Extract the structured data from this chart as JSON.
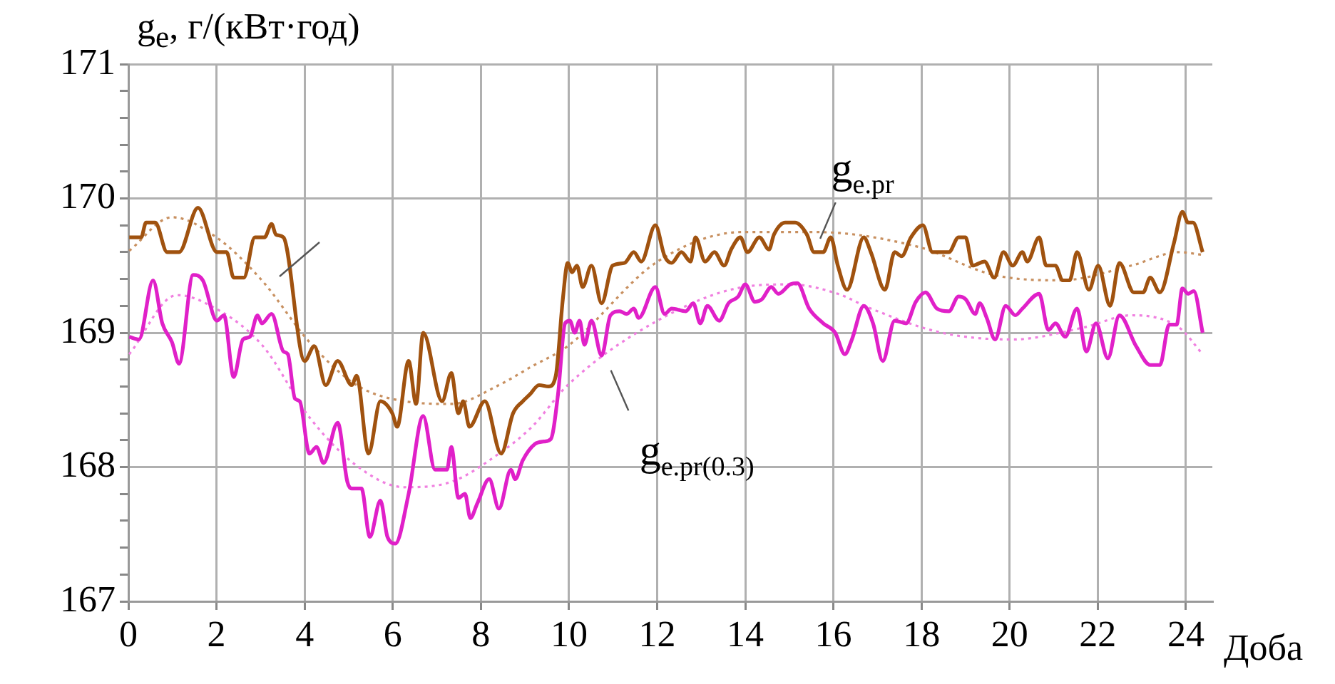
{
  "chart_data": {
    "type": "line",
    "xlabel": "Доба",
    "ylabel": "g$_{e}$, г/(кВт·год)",
    "xlim": [
      0,
      24.6
    ],
    "xticks": [
      0,
      2,
      4,
      6,
      8,
      10,
      12,
      14,
      16,
      18,
      20,
      22,
      24
    ],
    "ylim": [
      167,
      171
    ],
    "yticks": [
      167,
      {
        "value": 167.2,
        "label": null
      },
      {
        "value": 167.4,
        "label": null
      },
      {
        "value": 167.6,
        "label": null
      },
      {
        "value": 167.8,
        "label": null
      },
      168,
      {
        "value": 168.2,
        "label": null
      },
      {
        "value": 168.4,
        "label": null
      },
      {
        "value": 168.6,
        "label": null
      },
      {
        "value": 168.8,
        "label": null
      },
      169,
      {
        "value": 169.2,
        "label": null
      },
      {
        "value": 169.4,
        "label": null
      },
      {
        "value": 169.6,
        "label": null
      },
      {
        "value": 169.8,
        "label": null
      },
      170,
      {
        "value": 170.2,
        "label": null
      },
      {
        "value": 170.4,
        "label": null
      },
      {
        "value": 170.6,
        "label": null
      },
      {
        "value": 170.8,
        "label": null
      },
      171
    ],
    "grid": true,
    "legend": false,
    "marker": "none",
    "series": [
      {
        "name": "g$_{e.pr}$",
        "color": "#a0520f",
        "line_style": "solid",
        "x": [
          0.02,
          0.29,
          0.4,
          0.61,
          0.88,
          1.15,
          1.58,
          2.01,
          2.23,
          2.39,
          2.62,
          2.87,
          3.09,
          3.25,
          3.35,
          3.52,
          4.0,
          4.22,
          4.48,
          4.75,
          5.07,
          5.18,
          5.45,
          5.72,
          5.99,
          6.1,
          6.36,
          6.53,
          6.69,
          7.12,
          7.33,
          7.49,
          7.6,
          7.74,
          8.09,
          8.46,
          8.73,
          8.95,
          9.11,
          9.32,
          9.54,
          9.7,
          9.86,
          9.97,
          10.07,
          10.18,
          10.31,
          10.51,
          10.74,
          10.99,
          11.26,
          11.47,
          11.64,
          11.96,
          12.17,
          12.33,
          12.55,
          12.76,
          12.87,
          13.09,
          13.3,
          13.52,
          13.68,
          13.89,
          14.05,
          14.32,
          14.54,
          14.65,
          14.91,
          15.13,
          15.4,
          15.56,
          15.77,
          15.94,
          16.1,
          16.31,
          16.69,
          16.85,
          17.17,
          17.39,
          17.55,
          17.76,
          18.03,
          18.25,
          18.62,
          18.84,
          19.0,
          19.16,
          19.43,
          19.65,
          19.86,
          20.07,
          20.29,
          20.4,
          20.67,
          20.83,
          21.04,
          21.2,
          21.36,
          21.53,
          21.8,
          22.01,
          22.28,
          22.49,
          22.82,
          23.03,
          23.19,
          23.41,
          23.73,
          23.92,
          24.05,
          24.16,
          24.38
        ],
        "values": [
          169.71,
          169.71,
          169.82,
          169.82,
          169.6,
          169.6,
          169.93,
          169.6,
          169.6,
          169.41,
          169.41,
          169.71,
          169.71,
          169.81,
          169.73,
          169.71,
          168.79,
          168.9,
          168.61,
          168.79,
          168.61,
          168.68,
          168.1,
          168.49,
          168.4,
          168.3,
          168.79,
          168.47,
          169.0,
          168.49,
          168.7,
          168.4,
          168.49,
          168.3,
          168.49,
          168.1,
          168.4,
          168.49,
          168.54,
          168.61,
          168.6,
          168.68,
          169.25,
          169.52,
          169.45,
          169.5,
          169.34,
          169.5,
          169.22,
          169.5,
          169.52,
          169.6,
          169.53,
          169.8,
          169.57,
          169.52,
          169.6,
          169.53,
          169.71,
          169.53,
          169.6,
          169.5,
          169.62,
          169.71,
          169.6,
          169.71,
          169.62,
          169.73,
          169.82,
          169.82,
          169.73,
          169.6,
          169.6,
          169.71,
          169.5,
          169.32,
          169.71,
          169.6,
          169.32,
          169.6,
          169.57,
          169.71,
          169.8,
          169.6,
          169.6,
          169.71,
          169.71,
          169.5,
          169.53,
          169.41,
          169.6,
          169.5,
          169.6,
          169.53,
          169.71,
          169.5,
          169.5,
          169.39,
          169.39,
          169.6,
          169.32,
          169.5,
          169.2,
          169.52,
          169.3,
          169.3,
          169.41,
          169.3,
          169.67,
          169.9,
          169.82,
          169.82,
          169.6
        ]
      },
      {
        "name": "g$_{e.pr(0.3)}$",
        "color": "#e020c8",
        "line_style": "solid",
        "x": [
          0.02,
          0.24,
          0.56,
          0.77,
          0.99,
          1.15,
          1.47,
          1.69,
          2.01,
          2.17,
          2.39,
          2.6,
          2.76,
          2.93,
          3.03,
          3.25,
          3.52,
          3.62,
          3.78,
          3.89,
          4.11,
          4.27,
          4.43,
          4.75,
          4.97,
          5.07,
          5.29,
          5.48,
          5.72,
          5.88,
          6.06,
          6.36,
          6.69,
          6.96,
          7.23,
          7.33,
          7.49,
          7.64,
          7.76,
          7.92,
          8.19,
          8.41,
          8.68,
          8.78,
          8.95,
          9.22,
          9.43,
          9.59,
          9.75,
          9.91,
          10.02,
          10.13,
          10.24,
          10.35,
          10.51,
          10.74,
          10.94,
          11.15,
          11.31,
          11.47,
          11.58,
          11.96,
          12.17,
          12.33,
          12.65,
          12.82,
          12.98,
          13.14,
          13.41,
          13.62,
          13.84,
          14.0,
          14.22,
          14.38,
          14.59,
          14.75,
          15.02,
          15.18,
          15.45,
          15.77,
          16.04,
          16.26,
          16.42,
          16.69,
          16.9,
          17.12,
          17.39,
          17.65,
          17.87,
          18.09,
          18.35,
          18.62,
          18.84,
          19.0,
          19.22,
          19.32,
          19.48,
          19.67,
          19.91,
          20.13,
          20.29,
          20.67,
          20.88,
          21.04,
          21.26,
          21.53,
          21.74,
          21.96,
          22.23,
          22.49,
          22.87,
          23.19,
          23.41,
          23.62,
          23.79,
          23.92,
          24.05,
          24.18,
          24.38
        ],
        "values": [
          168.97,
          168.95,
          169.39,
          169.07,
          168.93,
          168.77,
          169.43,
          169.39,
          169.09,
          169.13,
          168.67,
          168.95,
          168.97,
          169.13,
          169.07,
          169.14,
          168.86,
          168.84,
          168.51,
          168.49,
          168.1,
          168.15,
          168.03,
          168.33,
          167.89,
          167.84,
          167.84,
          167.48,
          167.75,
          167.48,
          167.43,
          167.8,
          168.38,
          167.98,
          167.98,
          168.15,
          167.77,
          167.8,
          167.62,
          167.73,
          167.91,
          167.69,
          167.98,
          167.91,
          168.05,
          168.17,
          168.19,
          168.21,
          168.54,
          169.07,
          169.09,
          169.0,
          169.09,
          168.91,
          169.09,
          168.83,
          169.13,
          169.16,
          169.14,
          169.18,
          169.11,
          169.34,
          169.14,
          169.18,
          169.16,
          169.22,
          169.07,
          169.2,
          169.09,
          169.22,
          169.27,
          169.36,
          169.23,
          169.25,
          169.34,
          169.29,
          169.36,
          169.37,
          169.18,
          169.07,
          169.0,
          168.84,
          168.95,
          169.2,
          169.07,
          168.79,
          169.09,
          169.07,
          169.23,
          169.3,
          169.18,
          169.16,
          169.27,
          169.25,
          169.14,
          169.22,
          169.11,
          168.95,
          169.2,
          169.13,
          169.18,
          169.29,
          169.02,
          169.07,
          168.97,
          169.18,
          168.86,
          169.07,
          168.81,
          169.13,
          168.9,
          168.76,
          168.76,
          169.06,
          169.06,
          169.33,
          169.29,
          169.31,
          169.0
        ]
      },
      {
        "color": "#c89060",
        "line_style": "dotted",
        "x": [
          0.02,
          0.99,
          2.0,
          3.03,
          4.11,
          5.18,
          6.26,
          7.33,
          8.41,
          9.16,
          9.97,
          12.01,
          13.95,
          15.56,
          17.92,
          19.65,
          21.15,
          22.76,
          23.84,
          24.38
        ],
        "values": [
          169.61,
          169.86,
          169.71,
          169.39,
          168.93,
          168.61,
          168.49,
          168.47,
          168.61,
          168.75,
          168.9,
          169.53,
          169.75,
          169.75,
          169.64,
          169.43,
          169.39,
          169.5,
          169.6,
          169.58
        ]
      },
      {
        "color": "#f080e0",
        "line_style": "dotted",
        "x": [
          0.02,
          1.1,
          1.69,
          3.03,
          4.11,
          5.18,
          6.26,
          7.33,
          8.41,
          9.16,
          9.97,
          12.01,
          13.95,
          15.02,
          16.1,
          16.85,
          18.46,
          20.07,
          21.69,
          22.76,
          23.84,
          24.38
        ],
        "values": [
          168.84,
          169.28,
          169.23,
          168.91,
          168.37,
          168.01,
          167.85,
          167.89,
          168.1,
          168.3,
          168.61,
          169.09,
          169.34,
          169.36,
          169.29,
          169.18,
          169.0,
          168.95,
          169.04,
          169.13,
          169.04,
          168.84
        ]
      }
    ]
  }
}
